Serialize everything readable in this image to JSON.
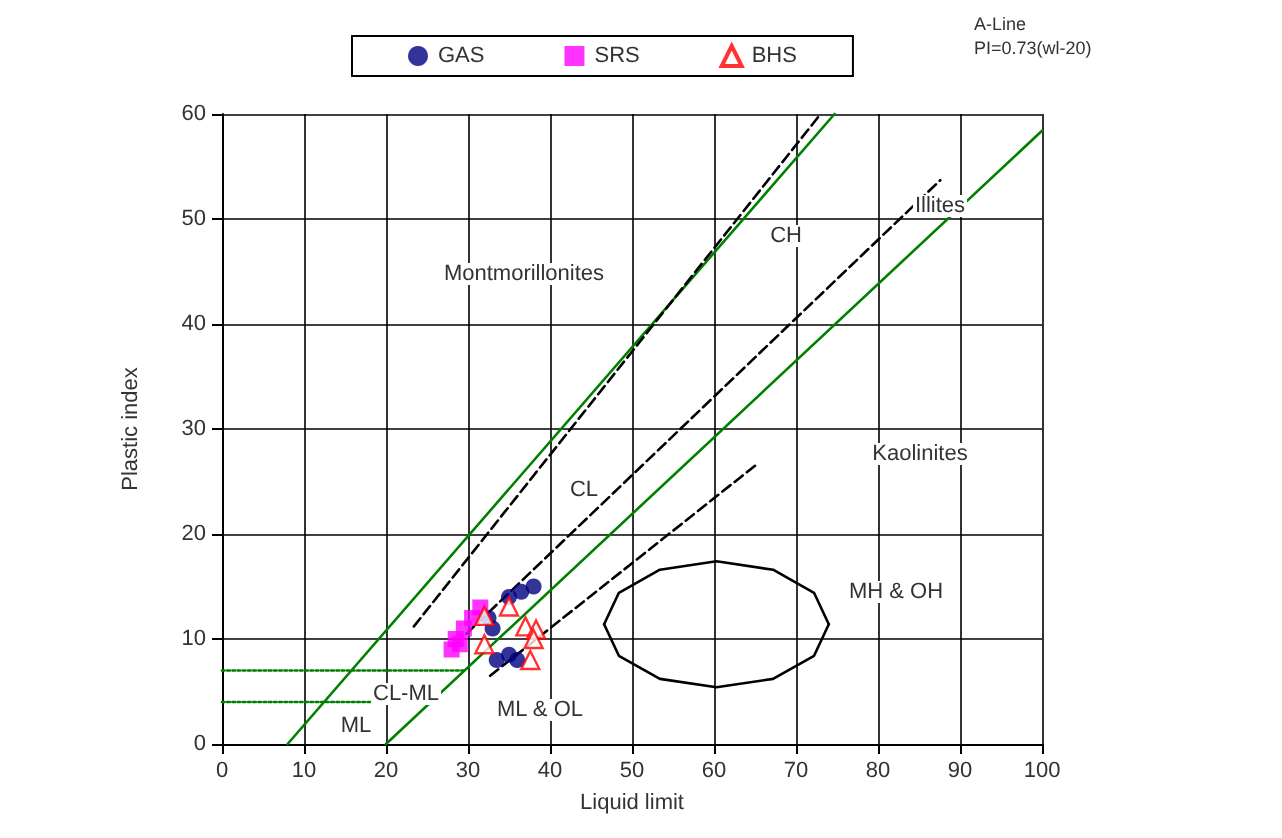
{
  "chart_data": {
    "type": "scatter",
    "xlabel": "Liquid limit",
    "ylabel": "Plastic index",
    "xlim": [
      0,
      100
    ],
    "xticks": [
      0,
      10,
      20,
      30,
      40,
      50,
      60,
      70,
      80,
      90,
      100
    ],
    "ylim": [
      0,
      60
    ],
    "yticks": [
      0,
      10,
      20,
      30,
      40,
      50,
      60
    ],
    "grid": true,
    "legend": "top",
    "series": [
      {
        "name": "GAS",
        "marker": "circle",
        "color": "#000080",
        "x": [
          35,
          36.5,
          38,
          32.5,
          33,
          33.5,
          35,
          36
        ],
        "values": [
          14,
          14.5,
          15,
          12,
          11,
          8,
          8.5,
          8
        ]
      },
      {
        "name": "SRS",
        "marker": "square",
        "color": "#ff00ff",
        "x": [
          28,
          28.5,
          29.5,
          30.5,
          31.5,
          29
        ],
        "values": [
          9,
          10,
          11,
          12,
          13,
          9.5
        ]
      },
      {
        "name": "BHS",
        "marker": "triangle",
        "color": "#ff0000",
        "x": [
          32,
          35,
          32,
          37,
          38.3,
          38,
          37.6
        ],
        "values": [
          12.2,
          13.1,
          9.5,
          11.2,
          10.9,
          10,
          8
        ]
      },
      {
        "type": "line",
        "color": "#008000",
        "line_style": "solid",
        "x": [
          20,
          100
        ],
        "values": [
          0,
          58.4
        ]
      },
      {
        "type": "line",
        "color": "#008000",
        "line_style": "solid",
        "x": [
          8,
          74.7
        ],
        "values": [
          0,
          60
        ]
      },
      {
        "type": "line",
        "color": "#008000",
        "line_style": "dotted",
        "x": [
          0,
          29.6
        ],
        "values": [
          7,
          7
        ]
      },
      {
        "type": "line",
        "color": "#008000",
        "line_style": "dotted",
        "x": [
          0,
          25.5
        ],
        "values": [
          4,
          4
        ]
      },
      {
        "type": "line",
        "color": "#000000",
        "line_style": "dashed",
        "x": [
          23.4,
          73
        ],
        "values": [
          11.2,
          60
        ]
      },
      {
        "type": "line",
        "color": "#000000",
        "line_style": "dashed",
        "x": [
          29.8,
          87.6
        ],
        "values": [
          10.5,
          53.7
        ]
      },
      {
        "type": "line",
        "color": "#000000",
        "line_style": "dashed",
        "x": [
          32.7,
          65
        ],
        "values": [
          6.5,
          26.5
        ]
      },
      {
        "type": "line",
        "color": "#000000",
        "line_style": "solid",
        "x": [
          46.6,
          48.4,
          53.4,
          60.3,
          67.2,
          72.2,
          74
        ],
        "values": [
          11.4,
          14.4,
          16.6,
          17.4,
          16.6,
          14.4,
          11.4
        ]
      },
      {
        "type": "line",
        "color": "#000000",
        "line_style": "solid",
        "x": [
          46.6,
          48.4,
          53.4,
          60.3,
          67.2,
          72.2,
          74
        ],
        "values": [
          11.4,
          8.4,
          6.2,
          5.4,
          6.2,
          8.4,
          11.4
        ]
      }
    ],
    "annotations": [
      "Montmorillonites",
      "Illites",
      "CH",
      "CL",
      "Kaolinites",
      "MH & OH",
      "CL-ML",
      "ML",
      "ML & OL",
      "A-Line",
      "PI=0.73(wl-20)"
    ]
  }
}
